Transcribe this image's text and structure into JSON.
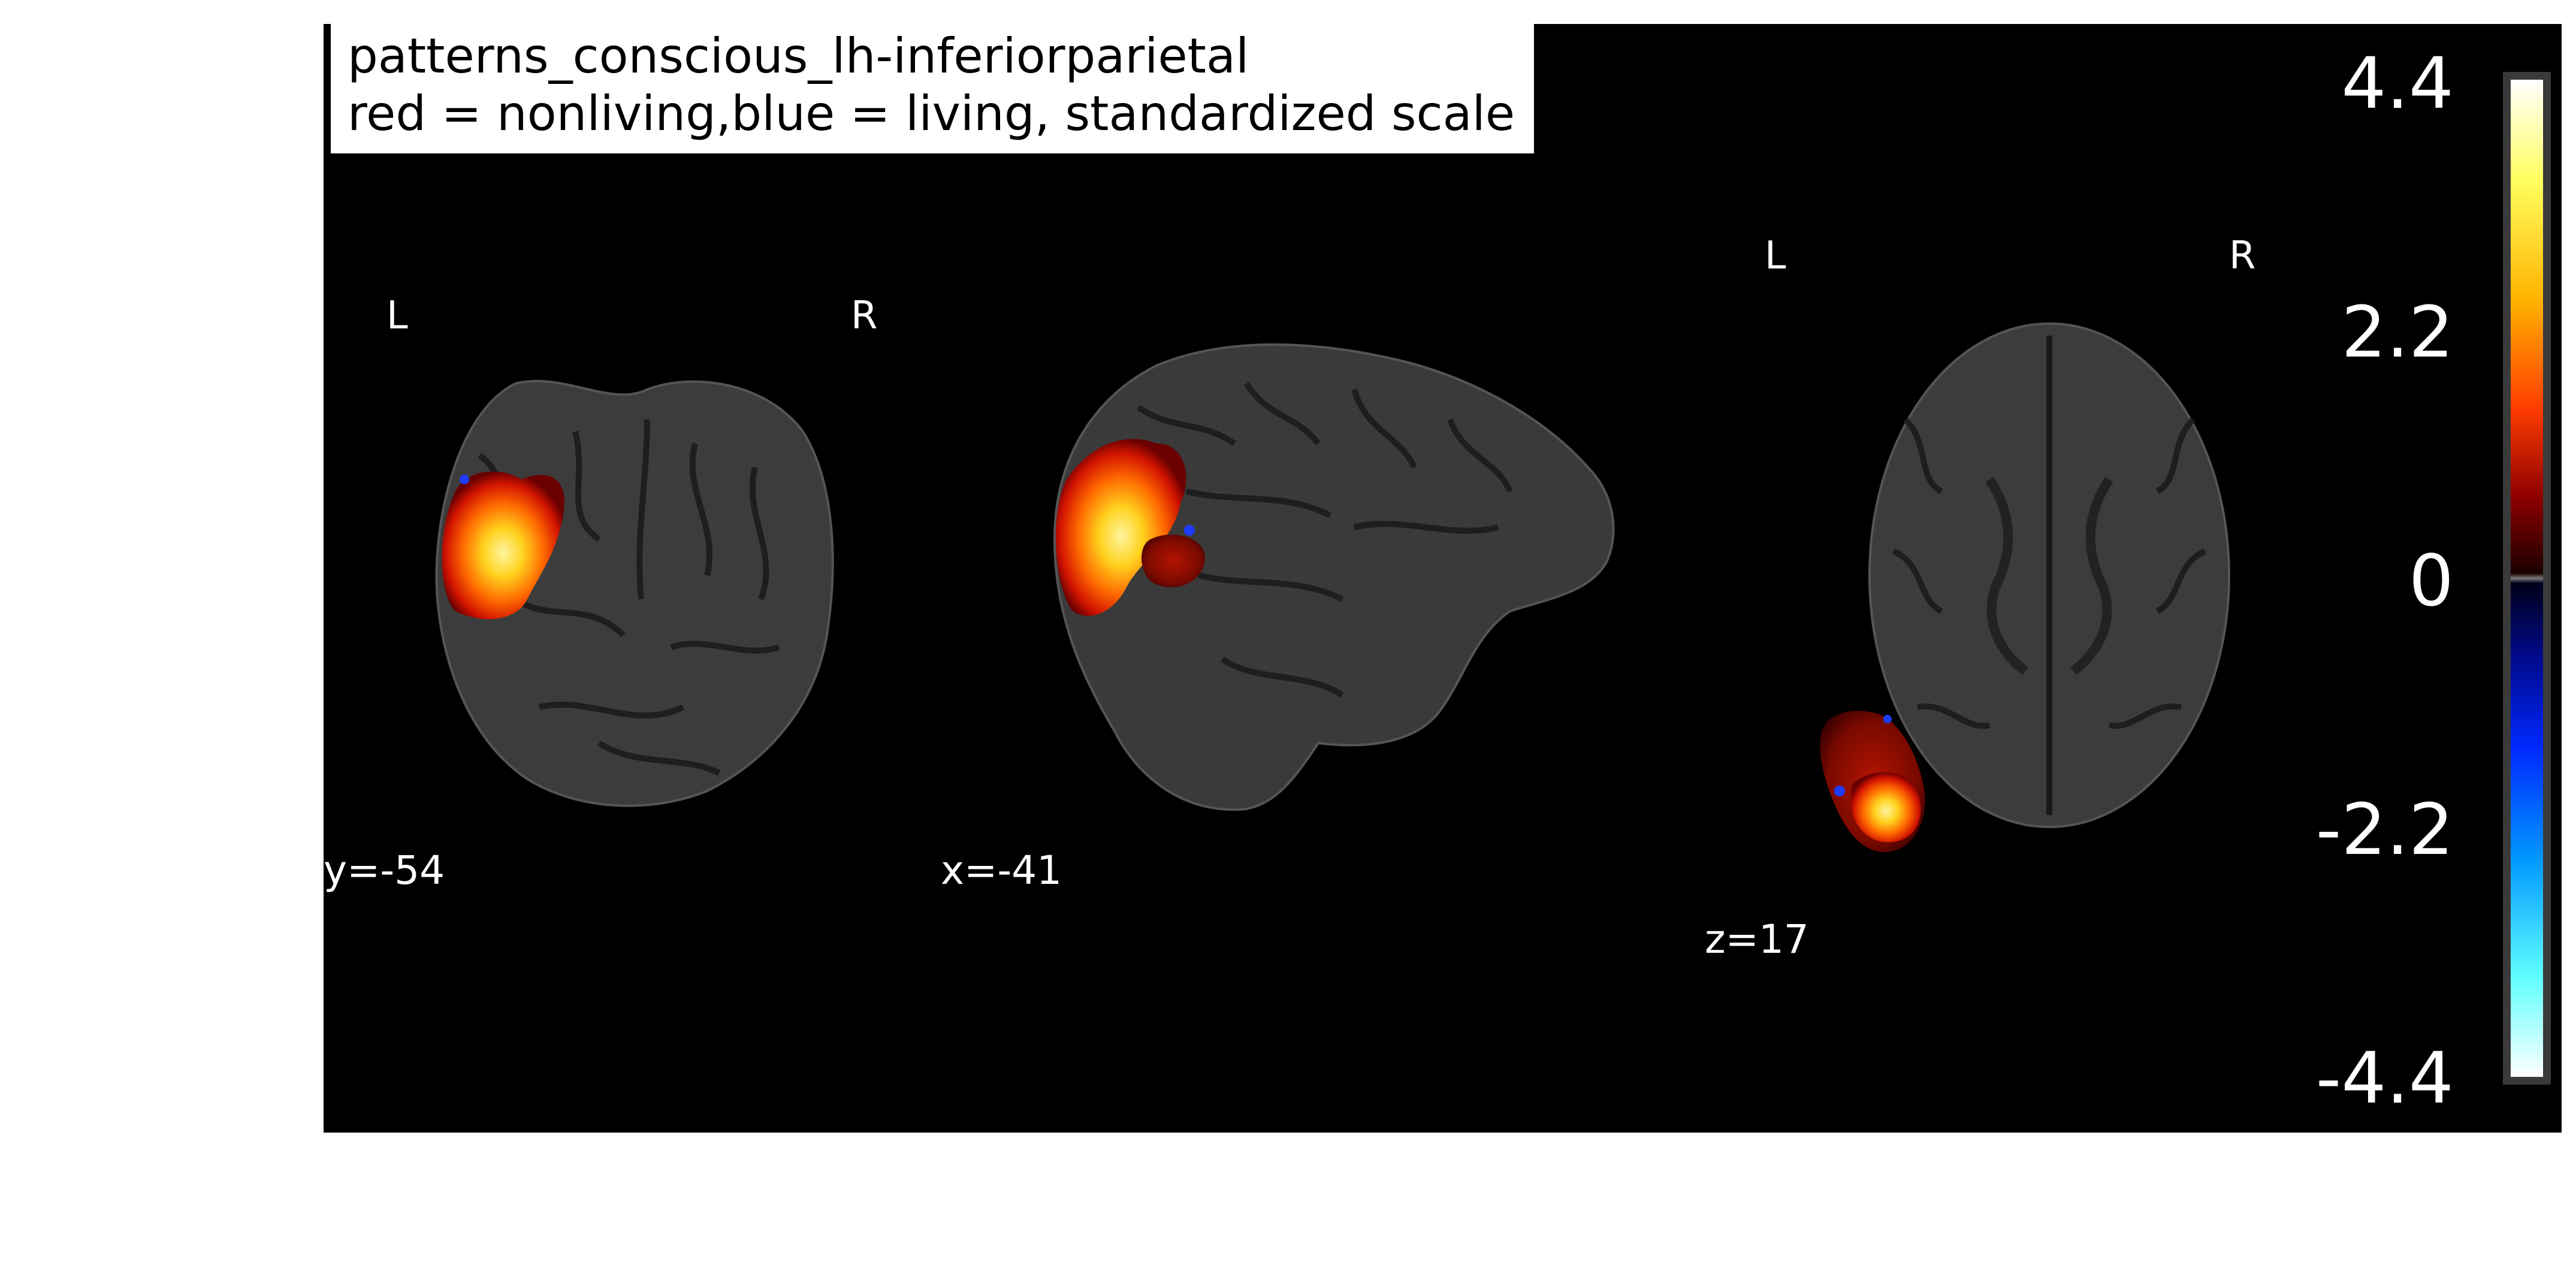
{
  "title": {
    "line1": "patterns_conscious_lh-inferiorparietal",
    "line2": "red = nonliving,blue = living, standardized scale"
  },
  "views": {
    "coronal": {
      "left_label": "L",
      "right_label": "R",
      "coord_label": "y=-54"
    },
    "sagittal": {
      "coord_label": "x=-41"
    },
    "axial": {
      "left_label": "L",
      "right_label": "R",
      "coord_label": "z=17"
    }
  },
  "colorbar": {
    "ticks": [
      "4.4",
      "2.2",
      "0",
      "-2.2",
      "-4.4"
    ],
    "range": [
      -4.4,
      4.4
    ],
    "positive_colormap": "black-red-orange-yellow-white",
    "negative_colormap": "black-blue-cyan-white"
  },
  "colors": {
    "background": "#000000",
    "brain": "#3a3a3a",
    "positive": "#ff3c00",
    "hot": "#ffd21e",
    "negative": "#1e50ff"
  }
}
